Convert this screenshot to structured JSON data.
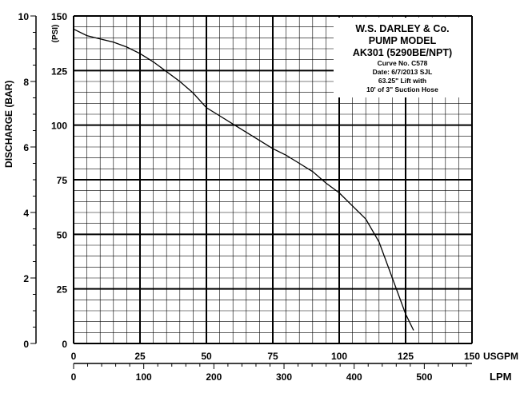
{
  "chart_data": {
    "type": "line",
    "series": [
      {
        "name": "",
        "x": [
          0,
          5,
          10,
          15,
          20,
          25,
          30,
          35,
          40,
          45,
          50,
          55,
          60,
          65,
          70,
          75,
          80,
          85,
          90,
          95,
          100,
          105,
          110,
          115,
          120,
          125,
          128
        ],
        "y": [
          9.6,
          9.4,
          9.3,
          9.2,
          9.05,
          8.85,
          8.6,
          8.3,
          8.0,
          7.65,
          7.2,
          6.95,
          6.7,
          6.45,
          6.2,
          5.95,
          5.75,
          5.5,
          5.25,
          4.9,
          4.6,
          4.2,
          3.8,
          3.1,
          2.0,
          0.9,
          0.4
        ]
      }
    ],
    "xlim": [
      0,
      150
    ],
    "ylim_bar": [
      0,
      10
    ],
    "ylim_psi": [
      0,
      150
    ],
    "xlim_lpm": [
      0,
      568
    ],
    "x_ticks": [
      "0",
      "25",
      "50",
      "75",
      "100",
      "125",
      "150"
    ],
    "x_ticks_values": [
      0,
      25,
      50,
      75,
      100,
      125,
      150
    ],
    "lpm_ticks": [
      "0",
      "100",
      "200",
      "300",
      "400",
      "500"
    ],
    "lpm_ticks_values": [
      0,
      100,
      200,
      300,
      400,
      500
    ],
    "bar_ticks": [
      "0",
      "2",
      "4",
      "6",
      "8",
      "10"
    ],
    "bar_ticks_values": [
      0,
      2,
      4,
      6,
      8,
      10
    ],
    "psi_ticks": [
      "0",
      "25",
      "50",
      "75",
      "100",
      "125",
      "150"
    ],
    "psi_ticks_values": [
      0,
      25,
      50,
      75,
      100,
      125,
      150
    ],
    "xlabel": "USGPM",
    "xlabel_secondary": "LPM",
    "ylabel": "DISCHARGE (BAR)",
    "ylabel_secondary": "(PSI)",
    "grid": true,
    "line_color": "#000000",
    "legend_placement": "top-right"
  },
  "legend": {
    "line1": "W.S. DARLEY & Co.",
    "line2": "PUMP MODEL",
    "line3": "AK301 (5290BE/NPT)",
    "line4": "Curve No. C578",
    "line5": "Date: 6/7/2013  SJL",
    "line6": "63.25\" Lift with",
    "line7": "10' of 3\" Suction Hose"
  }
}
